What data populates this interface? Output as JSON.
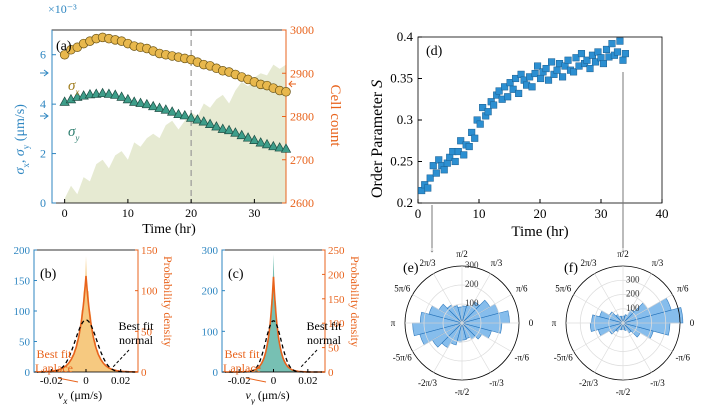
{
  "colors": {
    "blue": "#2e86c1",
    "orange": "#e8631c",
    "gold": "#e8b84d",
    "green": "#3e9e8a",
    "cellfill": "#e6ead2",
    "marker_blue": "#2c8fd1",
    "polar_fill": "#7ab6ea",
    "polar_edge": "#1f6fb8",
    "ring": "#dddddd",
    "hist_v_fill": "#f4c06a",
    "hist_y_fill": "#5fb5a6"
  },
  "arrows": {
    "label_a": "↓",
    "label_b": "↓"
  },
  "chart_data": [
    {
      "id": "a",
      "type": "line",
      "panel_label": "(a)",
      "xlabel": "Time (hr)",
      "ylabel_left": "σx, σy (μm/s)",
      "ylabel_left_parts": [
        "σ",
        "x",
        ", σ",
        "y",
        " (μm/s)"
      ],
      "ylabel_right": "Cell count",
      "exponent_label": "×10⁻³",
      "xlim": [
        -2,
        35
      ],
      "ylim_left": [
        0,
        7
      ],
      "ylim_right": [
        2600,
        3000
      ],
      "xticks": [
        0,
        10,
        20,
        30
      ],
      "yticks_left": [
        0,
        2,
        4,
        6
      ],
      "yticks_right": [
        2600,
        2700,
        2800,
        2900,
        3000
      ],
      "dashed_line_x": 20,
      "series": [
        {
          "name": "σx",
          "label_main": "σ",
          "label_sub": "x",
          "marker": "circle",
          "axis": "left",
          "x": [
            0,
            1,
            2,
            3,
            4,
            5,
            6,
            7,
            8,
            9,
            10,
            11,
            12,
            13,
            14,
            15,
            16,
            17,
            18,
            19,
            20,
            21,
            22,
            23,
            24,
            25,
            26,
            27,
            28,
            29,
            30,
            31,
            32,
            33,
            34,
            35
          ],
          "values": [
            6.0,
            6.2,
            6.3,
            6.45,
            6.55,
            6.65,
            6.7,
            6.65,
            6.6,
            6.55,
            6.45,
            6.35,
            6.3,
            6.25,
            6.15,
            6.05,
            6.0,
            5.95,
            5.9,
            5.85,
            5.8,
            5.7,
            5.6,
            5.55,
            5.45,
            5.35,
            5.3,
            5.2,
            5.1,
            5.0,
            4.9,
            4.8,
            4.75,
            4.65,
            4.55,
            4.5
          ]
        },
        {
          "name": "σy",
          "label_main": "σ",
          "label_sub": "y",
          "marker": "triangle",
          "axis": "left",
          "x": [
            0,
            1,
            2,
            3,
            4,
            5,
            6,
            7,
            8,
            9,
            10,
            11,
            12,
            13,
            14,
            15,
            16,
            17,
            18,
            19,
            20,
            21,
            22,
            23,
            24,
            25,
            26,
            27,
            28,
            29,
            30,
            31,
            32,
            33,
            34,
            35
          ],
          "values": [
            4.1,
            4.2,
            4.3,
            4.35,
            4.4,
            4.42,
            4.45,
            4.42,
            4.38,
            4.3,
            4.2,
            4.1,
            4.05,
            4.0,
            3.92,
            3.85,
            3.78,
            3.7,
            3.6,
            3.55,
            3.45,
            3.38,
            3.3,
            3.2,
            3.1,
            3.0,
            2.95,
            2.85,
            2.75,
            2.65,
            2.55,
            2.45,
            2.38,
            2.3,
            2.25,
            2.2
          ]
        },
        {
          "name": "Cell count",
          "type": "area",
          "axis": "right",
          "x": [
            0,
            1,
            2,
            3,
            4,
            5,
            6,
            7,
            8,
            9,
            10,
            11,
            12,
            13,
            14,
            15,
            16,
            17,
            18,
            19,
            20,
            21,
            22,
            23,
            24,
            25,
            26,
            27,
            28,
            29,
            30,
            31,
            32,
            33,
            34,
            35
          ],
          "values": [
            2610,
            2640,
            2620,
            2660,
            2650,
            2690,
            2700,
            2680,
            2710,
            2720,
            2700,
            2740,
            2730,
            2750,
            2760,
            2750,
            2780,
            2790,
            2770,
            2790,
            2810,
            2800,
            2830,
            2820,
            2840,
            2850,
            2830,
            2860,
            2880,
            2870,
            2890,
            2900,
            2895,
            2920,
            2910,
            2920
          ]
        }
      ]
    },
    {
      "id": "b",
      "type": "area",
      "panel_label": "(b)",
      "xlabel": "vx (μm/s)",
      "xlabel_parts": [
        "v",
        "x",
        " (μm/s)"
      ],
      "ylabel_right": "Probability density",
      "xlim": [
        -0.03,
        0.03
      ],
      "ylim_left": [
        0,
        200
      ],
      "ylim_right": [
        0,
        150
      ],
      "xticks": [
        -0.02,
        0,
        0.02
      ],
      "xtick_labels": [
        "-0.02",
        "0",
        "0.02"
      ],
      "yticks_left": [
        0,
        50,
        100,
        150,
        200
      ],
      "yticks_right": [
        0,
        50,
        100,
        150
      ],
      "histogram_peak": 190,
      "histogram_width": 0.0042,
      "laplace_peak": 118,
      "laplace_scale": 0.0042,
      "normal_peak": 64,
      "normal_sigma": 0.0062,
      "annotations": {
        "fit_normal": [
          "Best fit",
          "normal"
        ],
        "fit_laplace": [
          "Best fit",
          "Laplace"
        ]
      }
    },
    {
      "id": "c",
      "type": "area",
      "panel_label": "(c)",
      "xlabel": "vy (μm/s)",
      "xlabel_parts": [
        "v",
        "y",
        " (μm/s)"
      ],
      "ylabel_right": "Probability density",
      "xlim": [
        -0.03,
        0.03
      ],
      "ylim_left": [
        0,
        300
      ],
      "ylim_right": [
        0,
        250
      ],
      "xticks": [
        -0.02,
        0,
        0.02
      ],
      "xtick_labels": [
        "-0.02",
        "0",
        "0.02"
      ],
      "yticks_left": [
        0,
        100,
        200,
        300
      ],
      "yticks_right": [
        0,
        50,
        100,
        150,
        200,
        250
      ],
      "histogram_peak": 290,
      "histogram_width": 0.0028,
      "laplace_peak": 195,
      "laplace_scale": 0.0029,
      "normal_peak": 105,
      "normal_sigma": 0.0045,
      "annotations": {
        "fit_normal": [
          "Best fit",
          "normal"
        ],
        "fit_laplace": [
          "Best fit",
          "Laplace"
        ]
      }
    },
    {
      "id": "d",
      "type": "scatter",
      "panel_label": "(d)",
      "xlabel": "Time (hr)",
      "ylabel": "Order Parameter S",
      "ylabel_parts": [
        "Order Parameter ",
        "S"
      ],
      "xlim": [
        0,
        40
      ],
      "ylim": [
        0.2,
        0.4
      ],
      "xticks": [
        0,
        10,
        20,
        30,
        40
      ],
      "yticks": [
        0.2,
        0.25,
        0.3,
        0.35,
        0.4
      ],
      "ytick_labels": [
        "0.2",
        "0.25",
        "0.3",
        "0.35",
        "0.4"
      ],
      "x": [
        0.6,
        1.1,
        1.6,
        2.0,
        2.5,
        3.0,
        3.4,
        3.9,
        4.3,
        4.8,
        5.2,
        5.7,
        6.1,
        6.6,
        7.0,
        7.5,
        7.9,
        8.4,
        8.8,
        9.3,
        9.7,
        10.2,
        10.6,
        11.1,
        11.5,
        12.0,
        12.4,
        12.9,
        13.3,
        13.8,
        14.2,
        14.7,
        15.1,
        15.6,
        16.0,
        16.5,
        16.9,
        17.4,
        17.8,
        18.3,
        18.7,
        19.2,
        19.6,
        20.1,
        20.5,
        21.0,
        21.4,
        21.9,
        22.3,
        22.8,
        23.2,
        23.7,
        24.1,
        24.6,
        25.0,
        25.5,
        25.9,
        26.4,
        26.8,
        27.3,
        27.7,
        28.2,
        28.6,
        29.1,
        29.5,
        30.0,
        30.4,
        30.9,
        31.3,
        31.8,
        32.2,
        32.7,
        33.1,
        33.6,
        34.0
      ],
      "values": [
        0.215,
        0.222,
        0.218,
        0.23,
        0.245,
        0.236,
        0.252,
        0.245,
        0.24,
        0.248,
        0.255,
        0.262,
        0.25,
        0.262,
        0.275,
        0.258,
        0.27,
        0.268,
        0.285,
        0.278,
        0.3,
        0.295,
        0.315,
        0.305,
        0.31,
        0.322,
        0.318,
        0.33,
        0.335,
        0.325,
        0.34,
        0.328,
        0.345,
        0.337,
        0.35,
        0.332,
        0.355,
        0.348,
        0.342,
        0.352,
        0.34,
        0.356,
        0.365,
        0.35,
        0.358,
        0.362,
        0.348,
        0.37,
        0.355,
        0.36,
        0.368,
        0.352,
        0.365,
        0.372,
        0.36,
        0.358,
        0.375,
        0.365,
        0.38,
        0.368,
        0.372,
        0.362,
        0.378,
        0.37,
        0.382,
        0.375,
        0.368,
        0.385,
        0.376,
        0.392,
        0.378,
        0.382,
        0.395,
        0.372,
        0.38
      ]
    },
    {
      "id": "e",
      "type": "polar-histogram",
      "panel_label": "(e)",
      "rmax": 300,
      "rticks": [
        100,
        200,
        300
      ],
      "rtick_labels": [
        "100",
        "200",
        "300"
      ],
      "angle_labels": [
        "0",
        "π/6",
        "π/3",
        "π/2",
        "2π/3",
        "5π/6",
        "π",
        "-5π/6",
        "-2π/3",
        "-π/2",
        "-π/3",
        "-π/6"
      ],
      "bin_count": 24,
      "values": [
        250,
        200,
        170,
        130,
        100,
        90,
        85,
        95,
        110,
        140,
        180,
        220,
        260,
        230,
        180,
        150,
        120,
        100,
        90,
        85,
        100,
        120,
        160,
        210
      ]
    },
    {
      "id": "f",
      "type": "polar-histogram",
      "panel_label": "(f)",
      "rmax": 400,
      "rticks": [
        100,
        200,
        300
      ],
      "rtick_labels": [
        "100",
        "200",
        "300"
      ],
      "angle_labels": [
        "0",
        "π/6",
        "π/3",
        "π/2",
        "2π/3",
        "5π/6",
        "π",
        "-5π/6",
        "-2π/3",
        "-π/2",
        "-π/3",
        "-π/6"
      ],
      "bin_count": 24,
      "values": [
        420,
        350,
        200,
        110,
        60,
        50,
        45,
        50,
        70,
        110,
        170,
        220,
        230,
        180,
        110,
        70,
        50,
        45,
        45,
        55,
        80,
        140,
        220,
        330
      ]
    }
  ]
}
